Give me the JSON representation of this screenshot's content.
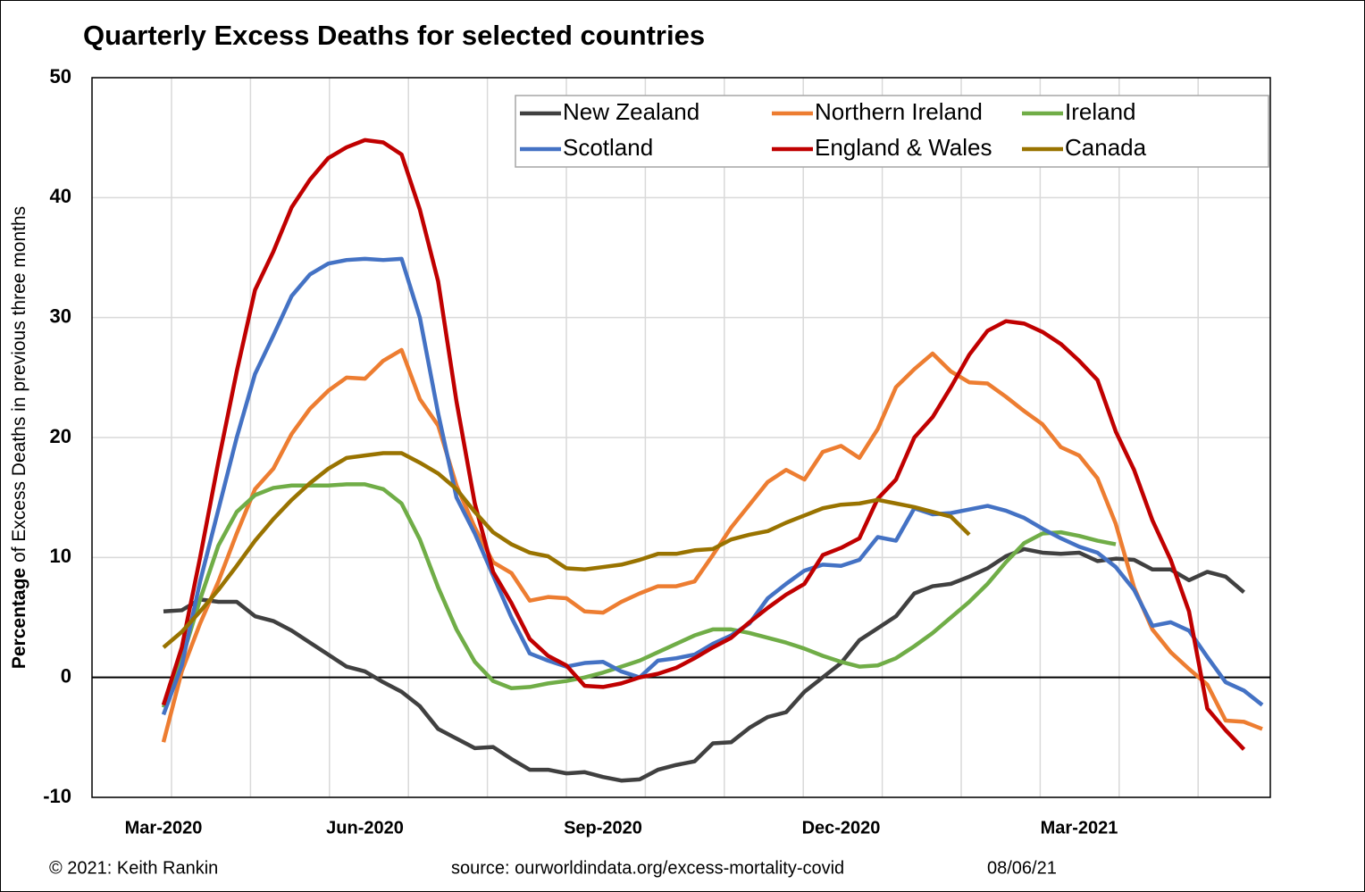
{
  "chart_data": {
    "type": "line",
    "title": "Quarterly Excess Deaths for selected countries",
    "y_label_bold": "Percentage",
    "y_label": " of Excess Deaths in previous three months",
    "footer_left": "© 2021: Keith Rankin",
    "footer_source": "source: ourworldindata.org/excess-mortality-covid",
    "footer_date": "08/06/21",
    "categories": [
      "Mar-2020",
      null,
      null,
      null,
      null,
      null,
      null,
      null,
      null,
      null,
      null,
      "Jun-2020",
      null,
      null,
      null,
      null,
      null,
      null,
      null,
      null,
      null,
      null,
      null,
      null,
      "Sep-2020",
      null,
      null,
      null,
      null,
      null,
      null,
      null,
      null,
      null,
      null,
      null,
      null,
      "Dec-2020",
      null,
      null,
      null,
      null,
      null,
      null,
      null,
      null,
      null,
      null,
      null,
      null,
      "Mar-2021",
      null,
      null,
      null,
      null,
      null,
      null,
      null,
      null,
      null,
      null
    ],
    "ylim": [
      -10,
      50
    ],
    "yticks": [
      -10,
      0,
      10,
      20,
      30,
      40,
      50
    ],
    "grid": true,
    "legend": "top-right",
    "series": [
      {
        "name": "New Zealand",
        "color": "#404040",
        "values": [
          5.5,
          5.6,
          6.5,
          6.3,
          6.3,
          5.1,
          4.7,
          3.9,
          2.9,
          1.9,
          0.9,
          0.5,
          -0.4,
          -1.2,
          -2.4,
          -4.3,
          -5.1,
          -5.9,
          -5.8,
          -6.8,
          -7.7,
          -7.7,
          -8.0,
          -7.9,
          -8.3,
          -8.6,
          -8.5,
          -7.7,
          -7.3,
          -7.0,
          -5.5,
          -5.4,
          -4.2,
          -3.3,
          -2.9,
          -1.2,
          0.0,
          1.2,
          3.1,
          4.1,
          5.1,
          7.0,
          7.6,
          7.8,
          8.4,
          9.1,
          10.1,
          10.7,
          10.4,
          10.3,
          10.4,
          9.7,
          9.9,
          9.8,
          9.0,
          9.0,
          8.1,
          8.8,
          8.4,
          7.1,
          null
        ]
      },
      {
        "name": "Northern Ireland",
        "color": "#ed7d31",
        "values": [
          -5.4,
          0.5,
          4.5,
          8,
          12,
          15.7,
          17.4,
          20.3,
          22.4,
          23.9,
          25.0,
          24.9,
          26.4,
          27.3,
          23.2,
          21.0,
          16,
          12.5,
          9.6,
          8.7,
          6.4,
          6.7,
          6.6,
          5.5,
          5.4,
          6.3,
          7.0,
          7.6,
          7.6,
          8.0,
          10.2,
          12.5,
          14.4,
          16.3,
          17.3,
          16.5,
          18.8,
          19.3,
          18.3,
          20.7,
          24.2,
          25.7,
          27.0,
          25.5,
          24.6,
          24.5,
          23.4,
          22.2,
          21.1,
          19.2,
          18.5,
          16.6,
          12.8,
          7.5,
          4.0,
          2.1,
          0.7,
          -0.6,
          -3.6,
          -3.7,
          -4.3
        ]
      },
      {
        "name": "Ireland",
        "color": "#70ad47",
        "values": [
          -2.5,
          1.5,
          6.5,
          11,
          13.8,
          15.2,
          15.8,
          16.0,
          16.0,
          16.0,
          16.1,
          16.1,
          15.7,
          14.5,
          11.5,
          7.5,
          4,
          1.3,
          -0.3,
          -0.9,
          -0.8,
          -0.5,
          -0.3,
          0.0,
          0.4,
          0.9,
          1.4,
          2.1,
          2.8,
          3.5,
          4.0,
          4.0,
          3.7,
          3.3,
          2.9,
          2.4,
          1.8,
          1.3,
          0.9,
          1.0,
          1.6,
          2.6,
          3.7,
          5.0,
          6.3,
          7.8,
          9.6,
          11.2,
          12.0,
          12.1,
          11.8,
          11.4,
          11.1,
          null,
          null,
          null,
          null,
          null,
          null,
          null,
          null
        ]
      },
      {
        "name": "Scotland",
        "color": "#4472c4",
        "values": [
          -3.1,
          1.0,
          8,
          14,
          20,
          25.3,
          28.5,
          31.8,
          33.6,
          34.5,
          34.8,
          34.9,
          34.8,
          34.9,
          30,
          22,
          15,
          12,
          8.5,
          5.0,
          2.0,
          1.4,
          0.9,
          1.2,
          1.3,
          0.5,
          0.0,
          1.4,
          1.6,
          1.9,
          2.8,
          3.5,
          4.5,
          6.6,
          7.8,
          8.9,
          9.4,
          9.3,
          9.8,
          11.7,
          11.4,
          14.1,
          13.6,
          13.7,
          14.0,
          14.3,
          13.9,
          13.3,
          12.4,
          11.6,
          10.9,
          10.4,
          9.2,
          7.3,
          4.3,
          4.6,
          3.9,
          1.7,
          -0.4,
          -1.1,
          -2.3
        ]
      },
      {
        "name": "England & Wales",
        "color": "#c00000",
        "values": [
          -2.3,
          2.5,
          10,
          18,
          25.5,
          32.3,
          35.5,
          39.2,
          41.5,
          43.3,
          44.2,
          44.8,
          44.6,
          43.6,
          39.0,
          33,
          23,
          14.5,
          8.8,
          6.2,
          3.2,
          1.8,
          1.0,
          -0.7,
          -0.8,
          -0.5,
          0.0,
          0.3,
          0.8,
          1.6,
          2.5,
          3.3,
          4.6,
          5.8,
          6.9,
          7.8,
          10.2,
          10.8,
          11.6,
          14.9,
          16.5,
          20.0,
          21.7,
          24.2,
          26.9,
          28.9,
          29.7,
          29.5,
          28.8,
          27.8,
          26.4,
          24.8,
          20.5,
          17.3,
          13.1,
          9.8,
          5.5,
          -2.6,
          -4.4,
          -6.0,
          null
        ]
      },
      {
        "name": "Canada",
        "color": "#997300",
        "values": [
          2.5,
          3.8,
          5.5,
          7.3,
          9.3,
          11.4,
          13.2,
          14.8,
          16.2,
          17.4,
          18.3,
          18.5,
          18.7,
          18.7,
          17.9,
          17.0,
          15.7,
          13.8,
          12.1,
          11.1,
          10.4,
          10.1,
          9.1,
          9.0,
          9.2,
          9.4,
          9.8,
          10.3,
          10.3,
          10.6,
          10.7,
          11.5,
          11.9,
          12.2,
          12.9,
          13.5,
          14.1,
          14.4,
          14.5,
          14.8,
          14.5,
          14.2,
          13.8,
          13.4,
          11.9,
          null,
          null,
          null,
          null,
          null,
          null,
          null,
          null,
          null,
          null,
          null,
          null,
          null,
          null,
          null,
          null
        ]
      }
    ]
  }
}
